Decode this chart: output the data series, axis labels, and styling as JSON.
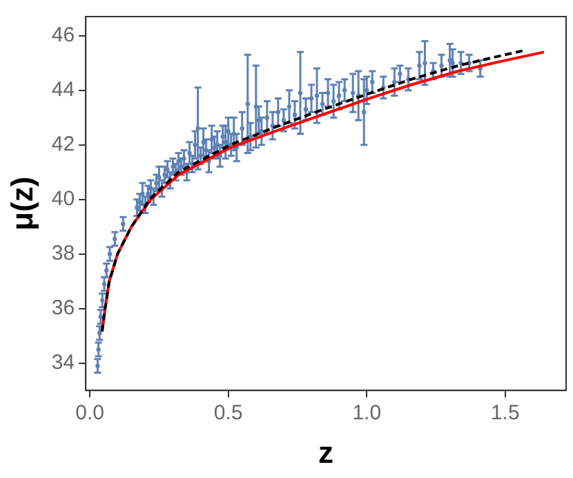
{
  "chart_data": {
    "type": "scatter",
    "xlabel": "z",
    "ylabel": "μ(z)",
    "xlim": [
      -0.015,
      1.72
    ],
    "ylim": [
      33,
      46.7
    ],
    "xticks": [
      {
        "value": 0,
        "label": "0.0"
      },
      {
        "value": 0.5,
        "label": "0.5"
      },
      {
        "value": 1,
        "label": "1.0"
      },
      {
        "value": 1.5,
        "label": "1.5"
      }
    ],
    "yticks": [
      34,
      36,
      38,
      40,
      42,
      44,
      46
    ],
    "grid": false,
    "legend": false,
    "series": [
      {
        "type": "scatter",
        "color": "#5e81b5",
        "marker": "circle",
        "x": [
          0.028,
          0.031,
          0.035,
          0.039,
          0.045,
          0.052,
          0.06,
          0.072,
          0.09,
          0.12,
          0.17,
          0.18,
          0.19,
          0.2,
          0.21,
          0.22,
          0.23,
          0.24,
          0.25,
          0.26,
          0.27,
          0.28,
          0.29,
          0.3,
          0.31,
          0.32,
          0.33,
          0.34,
          0.35,
          0.36,
          0.37,
          0.38,
          0.39,
          0.4,
          0.41,
          0.42,
          0.43,
          0.44,
          0.45,
          0.46,
          0.47,
          0.48,
          0.49,
          0.5,
          0.51,
          0.52,
          0.53,
          0.55,
          0.57,
          0.58,
          0.6,
          0.61,
          0.62,
          0.64,
          0.66,
          0.68,
          0.7,
          0.72,
          0.74,
          0.76,
          0.78,
          0.8,
          0.82,
          0.84,
          0.86,
          0.88,
          0.9,
          0.92,
          0.95,
          0.97,
          0.99,
          1.0,
          1.02,
          1.06,
          1.1,
          1.12,
          1.15,
          1.19,
          1.21,
          1.24,
          1.27,
          1.3,
          1.31,
          1.34,
          1.37,
          1.41
        ],
        "values": [
          33.9,
          34.5,
          35.1,
          35.7,
          36.3,
          36.9,
          37.4,
          38.0,
          38.55,
          39.1,
          39.7,
          39.9,
          40.2,
          39.8,
          40.2,
          40.4,
          40.1,
          40.6,
          40.8,
          40.4,
          40.9,
          41.1,
          40.7,
          41.2,
          41.0,
          41.4,
          41.2,
          41.5,
          41.0,
          41.7,
          41.3,
          42.0,
          42.6,
          41.6,
          42.1,
          41.8,
          41.4,
          42.2,
          41.9,
          42.0,
          41.6,
          42.3,
          42.1,
          42.5,
          42.0,
          42.4,
          41.9,
          42.6,
          43.5,
          42.3,
          43.4,
          42.9,
          42.5,
          43.0,
          42.7,
          43.2,
          42.9,
          43.4,
          43.1,
          43.9,
          43.3,
          43.7,
          43.8,
          43.5,
          43.9,
          43.6,
          43.8,
          44.0,
          43.9,
          43.8,
          43.2,
          44.0,
          44.3,
          44.1,
          44.3,
          44.6,
          44.4,
          44.9,
          45.0,
          44.7,
          44.9,
          45.1,
          45.0,
          45.0,
          45.0,
          44.8
        ],
        "errors": [
          0.25,
          0.25,
          0.25,
          0.25,
          0.25,
          0.25,
          0.25,
          0.25,
          0.25,
          0.25,
          0.3,
          0.3,
          0.4,
          0.3,
          0.3,
          0.3,
          0.3,
          0.3,
          0.4,
          0.3,
          0.3,
          0.3,
          0.3,
          0.3,
          0.3,
          0.3,
          0.3,
          0.3,
          0.3,
          0.4,
          0.3,
          0.5,
          1.5,
          0.3,
          0.5,
          0.4,
          0.4,
          0.5,
          0.4,
          0.5,
          0.4,
          0.4,
          0.6,
          0.5,
          0.4,
          0.6,
          0.5,
          0.6,
          1.8,
          0.5,
          1.5,
          0.5,
          0.5,
          0.6,
          0.5,
          0.5,
          0.4,
          0.6,
          0.5,
          1.5,
          0.4,
          0.5,
          1.0,
          0.4,
          0.5,
          0.6,
          0.5,
          0.4,
          0.7,
          0.9,
          1.2,
          0.5,
          0.4,
          0.4,
          0.5,
          0.3,
          0.4,
          0.5,
          0.8,
          0.3,
          0.4,
          0.6,
          0.5,
          0.4,
          0.3,
          0.3
        ]
      },
      {
        "type": "line",
        "color": "#ff0000",
        "line_style": "solid",
        "x": [
          0.044,
          0.055,
          0.07,
          0.1,
          0.15,
          0.22,
          0.32,
          0.507,
          0.67,
          0.83,
          1.0,
          1.16,
          1.33,
          1.49,
          1.64
        ],
        "values": [
          35.16,
          36.0,
          37.0,
          38.0,
          39.0,
          40.0,
          40.9,
          41.9,
          42.5,
          43.07,
          43.67,
          44.2,
          44.7,
          45.07,
          45.4
        ]
      },
      {
        "type": "line",
        "color": "#000000",
        "line_style": "dashed",
        "x": [
          0.044,
          0.055,
          0.07,
          0.1,
          0.15,
          0.22,
          0.32,
          0.507,
          0.67,
          0.83,
          1.0,
          1.16,
          1.33,
          1.49,
          1.57
        ],
        "values": [
          35.16,
          36.0,
          37.0,
          38.0,
          39.0,
          40.05,
          41.0,
          42.0,
          42.65,
          43.25,
          43.85,
          44.4,
          44.9,
          45.28,
          45.46
        ]
      }
    ]
  }
}
